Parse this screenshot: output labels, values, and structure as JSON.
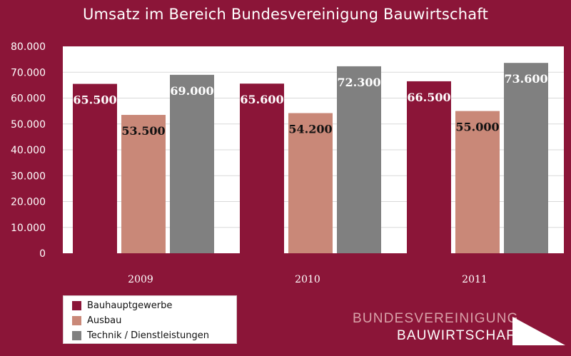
{
  "title": "Umsatz im Bereich Bundesvereinigung Bauwirtschaft",
  "colors": {
    "background": "#8b1538",
    "plot_area": "#ffffff",
    "gridline": "#d9d9d9"
  },
  "chart_data": {
    "type": "bar",
    "title": "Umsatz im Bereich Bundesvereinigung Bauwirtschaft",
    "xlabel": "",
    "ylabel": "",
    "categories": [
      "2009",
      "2010",
      "2011"
    ],
    "series": [
      {
        "name": "Bauhauptgewerbe",
        "values": [
          65500,
          65600,
          66500
        ],
        "color": "#8b1538",
        "labels": [
          "65.500",
          "65.600",
          "66.500"
        ],
        "label_color": "#ffffff"
      },
      {
        "name": "Ausbau",
        "values": [
          53500,
          54200,
          55000
        ],
        "color": "#c98878",
        "labels": [
          "53.500",
          "54.200",
          "55.000"
        ],
        "label_color": "#111111"
      },
      {
        "name": "Technik / Dienstleistungen",
        "values": [
          69000,
          72300,
          73600
        ],
        "color": "#808080",
        "labels": [
          "69.000",
          "72.300",
          "73.600"
        ],
        "label_color": "#ffffff"
      }
    ],
    "ylim": [
      0,
      80000
    ],
    "yticks": [
      0,
      10000,
      20000,
      30000,
      40000,
      50000,
      60000,
      70000,
      80000
    ],
    "ytick_labels": [
      "0",
      "10.000",
      "20.000",
      "30.000",
      "40.000",
      "50.000",
      "60.000",
      "70.000",
      "80.000"
    ],
    "grid": true,
    "legend_position": "bottom-left"
  },
  "logo": {
    "line1": "BUNDESVEREINIGUNG",
    "line2": "BAUWIRTSCHAFT"
  }
}
